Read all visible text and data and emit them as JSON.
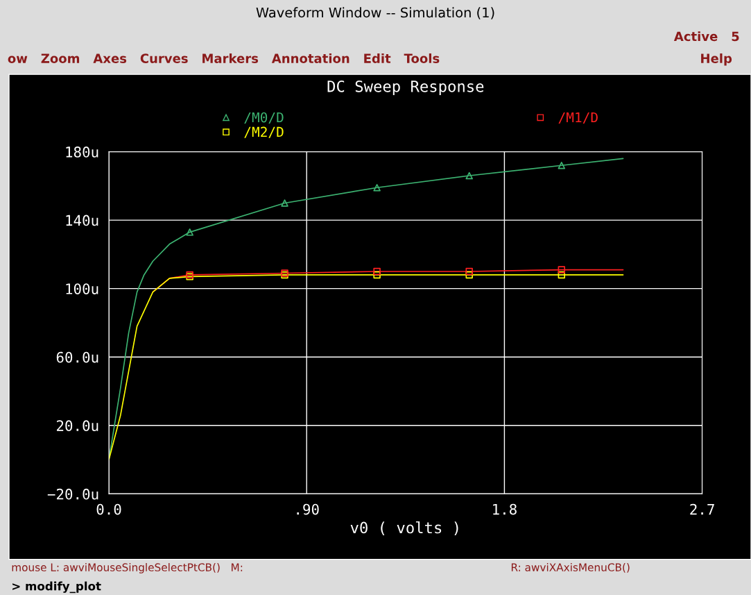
{
  "chart_data": {
    "type": "line",
    "title": "DC Sweep Response",
    "xlabel": "v0 ( volts )",
    "xlim": [
      0,
      2.7
    ],
    "xticks": [
      {
        "value": 0,
        "label": "0.0"
      },
      {
        "value": 0.9,
        "label": ".90"
      },
      {
        "value": 1.8,
        "label": "1.8"
      },
      {
        "value": 2.7,
        "label": "2.7"
      }
    ],
    "ylim": [
      -20,
      180
    ],
    "yticks": [
      {
        "value": -20,
        "label": "−20.0u"
      },
      {
        "value": 20,
        "label": "20.0u"
      },
      {
        "value": 60,
        "label": "60.0u"
      },
      {
        "value": 100,
        "label": "100u"
      },
      {
        "value": 140,
        "label": "140u"
      },
      {
        "value": 180,
        "label": "180u"
      }
    ],
    "grid": true,
    "legend": "top",
    "series": [
      {
        "name": "/M0/D",
        "color": "#3cb371",
        "x": [
          0,
          0.053,
          0.09,
          0.128,
          0.16,
          0.2,
          0.276,
          0.368,
          0.8,
          1.22,
          1.64,
          2.06,
          2.34
        ],
        "values": [
          0,
          42,
          74,
          98,
          108,
          116,
          126,
          133,
          150,
          159,
          166,
          172,
          176
        ]
      },
      {
        "name": "/M1/D",
        "color": "#ff2020",
        "x": [
          0.2,
          0.276,
          0.368,
          0.8,
          1.22,
          1.64,
          2.06,
          2.34
        ],
        "values": [
          98,
          106,
          108,
          109,
          110,
          110,
          111,
          111
        ]
      },
      {
        "name": "/M2/D",
        "color": "#ffff00",
        "x": [
          0,
          0.053,
          0.128,
          0.2,
          0.276,
          0.368,
          0.8,
          1.22,
          1.64,
          2.06,
          2.34
        ],
        "values": [
          0,
          26,
          78,
          98,
          106,
          107,
          108,
          108,
          108,
          108,
          108
        ]
      },
      {
        "type": "scatter",
        "color": "#3cb371",
        "marker": "triangle",
        "x": [
          0.368,
          0.8,
          1.22,
          1.64,
          2.06
        ],
        "values": [
          133,
          150,
          159,
          166,
          172
        ]
      },
      {
        "type": "scatter",
        "color": "#ffff00",
        "marker": "square",
        "x": [
          0.368,
          0.8,
          1.22,
          1.64,
          2.06
        ],
        "values": [
          107,
          108,
          108,
          108,
          108
        ]
      },
      {
        "type": "scatter",
        "color": "#ff2020",
        "marker": "square",
        "x": [
          0.368,
          0.8,
          1.22,
          1.64,
          2.06
        ],
        "values": [
          108,
          109,
          110,
          110,
          111
        ]
      }
    ],
    "annotations": [
      "Waveform Window -- Simulation (1)",
      "Active   5",
      "ow   Zoom   Axes   Curves   Markers   Annotation   Edit   Tools",
      "Help",
      "mouse L: awviMouseSingleSelectPtCB()   M:",
      "R: awviXAxisMenuCB()",
      "> modify_plot"
    ]
  }
}
